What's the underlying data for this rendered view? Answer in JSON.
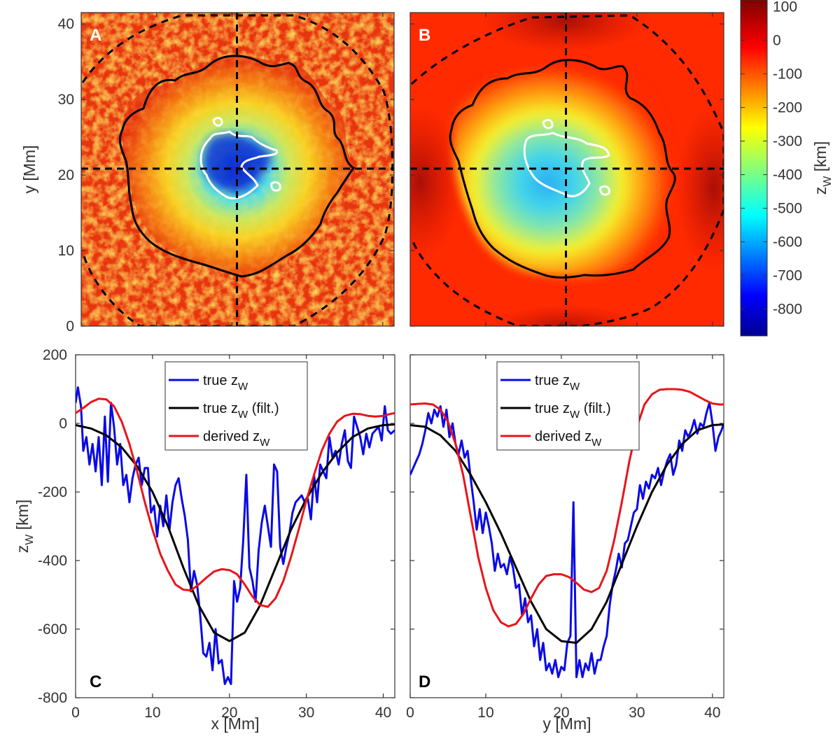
{
  "chart_data": [
    {
      "panel": "A",
      "type": "heatmap",
      "label": "A",
      "ylabel": "y [Mm]",
      "xlim": [
        0,
        41.5
      ],
      "ylim": [
        0,
        41.5
      ],
      "yticks": [
        "0",
        "10",
        "20",
        "30",
        "40"
      ],
      "crosshair": {
        "x": 20.8,
        "y": 20.8
      },
      "contours": [
        "black: penumbra boundary",
        "white: umbra boundary",
        "dashed black: outer boundary"
      ]
    },
    {
      "panel": "B",
      "type": "heatmap",
      "label": "B",
      "xlim": [
        0,
        41.5
      ],
      "ylim": [
        0,
        41.5
      ],
      "crosshair": {
        "x": 20.8,
        "y": 20.8
      }
    },
    {
      "panel": "colorbar",
      "type": "colorbar",
      "label_main": "z",
      "label_sub": "W",
      "label_unit": " [km]",
      "range": [
        -880,
        120
      ],
      "ticks": [
        "100",
        "0",
        "-100",
        "-200",
        "-300",
        "-400",
        "-500",
        "-600",
        "-700",
        "-800"
      ]
    },
    {
      "panel": "C",
      "type": "line",
      "label": "C",
      "xlabel": "x [Mm]",
      "ylabel_main": "z",
      "ylabel_sub": "W",
      "ylabel_unit": " [km]",
      "xlim": [
        0,
        41.5
      ],
      "ylim": [
        -800,
        200
      ],
      "xticks": [
        "0",
        "10",
        "20",
        "30",
        "40"
      ],
      "yticks": [
        "-800",
        "-600",
        "-400",
        "-200",
        "0",
        "200"
      ],
      "legend_position": "top-center",
      "series": [
        {
          "name": "true z_W",
          "legend_main": "true z",
          "legend_sub": "W",
          "legend_tail": "",
          "color": "#0a0ae6",
          "x": [
            0,
            0.3,
            0.7,
            1.0,
            1.4,
            1.8,
            2.2,
            2.6,
            3.0,
            3.4,
            3.8,
            4.2,
            4.6,
            5.0,
            5.4,
            5.8,
            6.2,
            6.6,
            7.0,
            7.4,
            7.8,
            8.2,
            8.6,
            9.0,
            9.4,
            9.8,
            10.2,
            10.6,
            11.0,
            11.4,
            11.8,
            12.2,
            12.6,
            13.0,
            13.4,
            13.8,
            14.2,
            14.6,
            15.0,
            15.4,
            15.8,
            16.2,
            16.6,
            17.0,
            17.4,
            17.8,
            18.2,
            18.6,
            19.0,
            19.4,
            19.8,
            20.2,
            20.6,
            21.0,
            21.4,
            21.8,
            22.2,
            22.6,
            23.0,
            23.4,
            23.8,
            24.2,
            24.6,
            25.0,
            25.4,
            25.8,
            26.2,
            26.6,
            27.0,
            27.4,
            27.8,
            28.2,
            28.6,
            29.0,
            29.4,
            29.8,
            30.2,
            30.6,
            31.0,
            31.4,
            31.8,
            32.2,
            32.6,
            33.0,
            33.4,
            33.8,
            34.2,
            34.6,
            35.0,
            35.4,
            35.8,
            36.2,
            36.6,
            37.0,
            37.4,
            37.8,
            38.2,
            38.6,
            39.0,
            39.4,
            39.8,
            40.2,
            40.6,
            41.0,
            41.5
          ],
          "y": [
            60,
            105,
            50,
            -80,
            -40,
            -120,
            -60,
            -140,
            -40,
            -180,
            20,
            -170,
            60,
            -10,
            -120,
            -60,
            -180,
            -150,
            -230,
            -160,
            -120,
            -100,
            -180,
            -130,
            -130,
            -260,
            -240,
            -330,
            -240,
            -300,
            -210,
            -310,
            -230,
            -180,
            -160,
            -220,
            -270,
            -340,
            -490,
            -430,
            -470,
            -560,
            -670,
            -680,
            -640,
            -720,
            -600,
            -700,
            -690,
            -760,
            -740,
            -760,
            -460,
            -520,
            -480,
            -340,
            -150,
            -420,
            -460,
            -520,
            -370,
            -290,
            -240,
            -300,
            -360,
            -120,
            -140,
            -360,
            -410,
            -360,
            -320,
            -260,
            -230,
            -220,
            -210,
            -230,
            -220,
            -280,
            -150,
            -230,
            -120,
            -140,
            -160,
            -40,
            -100,
            -80,
            -120,
            -60,
            -20,
            -110,
            -130,
            20,
            -10,
            -40,
            -90,
            -30,
            -70,
            -30,
            -20,
            -10,
            -50,
            50,
            -20,
            -30,
            -20
          ]
        },
        {
          "name": "true z_W (filt.)",
          "legend_main": "true z",
          "legend_sub": "W",
          "legend_tail": " (filt.)",
          "color": "#000000",
          "x": [
            0,
            2,
            4,
            6,
            8,
            10,
            12,
            14,
            16,
            18,
            20,
            22,
            24,
            26,
            28,
            30,
            32,
            34,
            36,
            38,
            40,
            41.5
          ],
          "y": [
            -5,
            -15,
            -35,
            -70,
            -125,
            -200,
            -300,
            -420,
            -530,
            -610,
            -635,
            -610,
            -530,
            -420,
            -310,
            -220,
            -145,
            -85,
            -40,
            -15,
            -5,
            -3
          ]
        },
        {
          "name": "derived z_W",
          "legend_main": "derived z",
          "legend_sub": "W",
          "legend_tail": "",
          "color": "#e8141a",
          "x": [
            0,
            1,
            2,
            3,
            4,
            5,
            6,
            7,
            8,
            9,
            10,
            11,
            12,
            13,
            14,
            15,
            16,
            17,
            18,
            19,
            20,
            21,
            22,
            23,
            24,
            25,
            26,
            27,
            28,
            29,
            30,
            31,
            32,
            33,
            34,
            35,
            36,
            37,
            38,
            39,
            40,
            41,
            41.5
          ],
          "y": [
            30,
            45,
            62,
            72,
            70,
            50,
            5,
            -60,
            -140,
            -230,
            -310,
            -380,
            -430,
            -470,
            -485,
            -487,
            -470,
            -450,
            -432,
            -425,
            -428,
            -440,
            -470,
            -505,
            -530,
            -535,
            -510,
            -460,
            -390,
            -310,
            -225,
            -150,
            -80,
            -30,
            5,
            22,
            28,
            27,
            22,
            20,
            22,
            28,
            30
          ]
        }
      ]
    },
    {
      "panel": "D",
      "type": "line",
      "label": "D",
      "xlabel": "y [Mm]",
      "xlim": [
        0,
        41.5
      ],
      "ylim": [
        -800,
        200
      ],
      "xticks": [
        "0",
        "10",
        "20",
        "30",
        "40"
      ],
      "legend_position": "top-center",
      "series": [
        {
          "name": "true z_W",
          "legend_main": "true z",
          "legend_sub": "W",
          "legend_tail": "",
          "color": "#0a0ae6",
          "x": [
            0,
            0.4,
            0.8,
            1.2,
            1.6,
            2.0,
            2.4,
            2.8,
            3.2,
            3.6,
            4.0,
            4.4,
            4.8,
            5.2,
            5.6,
            6.0,
            6.4,
            6.8,
            7.2,
            7.6,
            8.0,
            8.4,
            8.8,
            9.2,
            9.6,
            10.0,
            10.4,
            10.8,
            11.2,
            11.6,
            12.0,
            12.4,
            12.8,
            13.2,
            13.6,
            14.0,
            14.4,
            14.8,
            15.2,
            15.6,
            16.0,
            16.4,
            16.8,
            17.2,
            17.6,
            18.0,
            18.4,
            18.8,
            19.2,
            19.6,
            20.0,
            20.4,
            20.8,
            21.2,
            21.6,
            22.0,
            22.4,
            22.8,
            23.2,
            23.6,
            24.0,
            24.4,
            24.8,
            25.2,
            25.6,
            26.0,
            26.4,
            26.8,
            27.2,
            27.6,
            28.0,
            28.4,
            28.8,
            29.2,
            29.6,
            30.0,
            30.4,
            30.8,
            31.2,
            31.6,
            32.0,
            32.4,
            32.8,
            33.2,
            33.6,
            34.0,
            34.4,
            34.8,
            35.2,
            35.6,
            36.0,
            36.4,
            36.8,
            37.2,
            37.6,
            38.0,
            38.4,
            38.8,
            39.2,
            39.6,
            40.0,
            40.4,
            40.8,
            41.2,
            41.5
          ],
          "y": [
            -150,
            -130,
            -110,
            -90,
            -60,
            -20,
            30,
            0,
            40,
            20,
            50,
            -10,
            40,
            -40,
            0,
            -60,
            -90,
            -50,
            -100,
            -80,
            -160,
            -230,
            -310,
            -250,
            -320,
            -260,
            -300,
            -350,
            -430,
            -380,
            -420,
            -410,
            -440,
            -390,
            -420,
            -480,
            -470,
            -560,
            -510,
            -580,
            -560,
            -650,
            -600,
            -690,
            -640,
            -720,
            -700,
            -730,
            -690,
            -740,
            -710,
            -720,
            -640,
            -620,
            -230,
            -740,
            -690,
            -740,
            -700,
            -720,
            -670,
            -730,
            -690,
            -690,
            -650,
            -620,
            -530,
            -470,
            -430,
            -380,
            -420,
            -350,
            -340,
            -300,
            -260,
            -250,
            -180,
            -220,
            -170,
            -190,
            -150,
            -160,
            -130,
            -180,
            -140,
            -110,
            -90,
            -150,
            -120,
            -50,
            -80,
            -20,
            -40,
            -20,
            10,
            -30,
            0,
            -10,
            30,
            60,
            0,
            -80,
            -40,
            -20,
            0
          ]
        },
        {
          "name": "true z_W (filt.)",
          "legend_main": "true z",
          "legend_sub": "W",
          "legend_tail": " (filt.)",
          "color": "#000000",
          "x": [
            0,
            2,
            4,
            6,
            8,
            10,
            12,
            14,
            16,
            18,
            20,
            22,
            24,
            26,
            28,
            30,
            32,
            34,
            36,
            38,
            40,
            41.5
          ],
          "y": [
            -5,
            -10,
            -35,
            -80,
            -150,
            -230,
            -320,
            -420,
            -520,
            -600,
            -635,
            -640,
            -600,
            -520,
            -410,
            -300,
            -200,
            -120,
            -60,
            -20,
            -5,
            -3
          ]
        },
        {
          "name": "derived z_W",
          "legend_main": "derived z",
          "legend_sub": "W",
          "legend_tail": "",
          "color": "#e8141a",
          "x": [
            0,
            1,
            2,
            3,
            4,
            5,
            6,
            7,
            8,
            9,
            10,
            11,
            12,
            13,
            14,
            15,
            16,
            17,
            18,
            19,
            20,
            21,
            22,
            23,
            24,
            25,
            26,
            27,
            28,
            29,
            30,
            31,
            32,
            33,
            34,
            35,
            36,
            37,
            38,
            39,
            40,
            41,
            41.5
          ],
          "y": [
            55,
            57,
            58,
            55,
            40,
            5,
            -60,
            -150,
            -270,
            -390,
            -480,
            -545,
            -580,
            -592,
            -585,
            -555,
            -510,
            -470,
            -445,
            -440,
            -440,
            -448,
            -465,
            -485,
            -492,
            -480,
            -430,
            -340,
            -230,
            -110,
            -10,
            55,
            85,
            98,
            100,
            100,
            98,
            92,
            80,
            68,
            58,
            55,
            55
          ]
        }
      ]
    }
  ]
}
